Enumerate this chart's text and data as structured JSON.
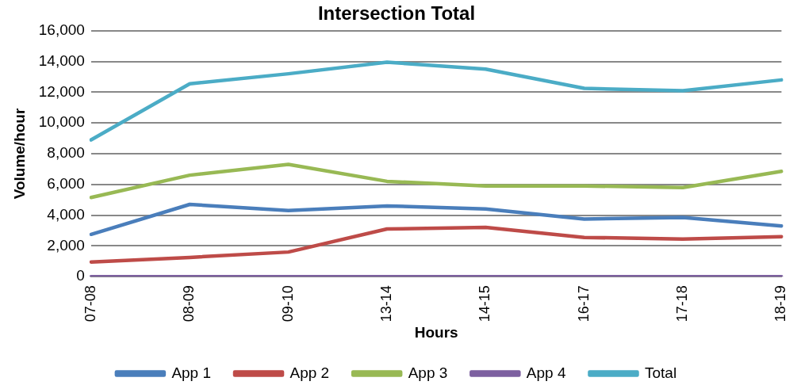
{
  "chart_data": {
    "type": "line",
    "title": "Intersection Total",
    "xlabel": "Hours",
    "ylabel": "Volume/hour",
    "categories": [
      "07-08",
      "08-09",
      "09-10",
      "13-14",
      "14-15",
      "16-17",
      "17-18",
      "18-19"
    ],
    "series": [
      {
        "name": "App 1",
        "color": "#4a7ebb",
        "values": [
          2750,
          4700,
          4300,
          4600,
          4400,
          3750,
          3850,
          3300
        ]
      },
      {
        "name": "App 2",
        "color": "#be4b48",
        "values": [
          950,
          1250,
          1600,
          3100,
          3200,
          2550,
          2450,
          2600
        ]
      },
      {
        "name": "App 3",
        "color": "#98b954",
        "values": [
          5150,
          6600,
          7300,
          6200,
          5900,
          5900,
          5800,
          6850
        ]
      },
      {
        "name": "App 4",
        "color": "#7d60a0",
        "values": [
          0,
          0,
          0,
          0,
          0,
          0,
          0,
          0
        ]
      },
      {
        "name": "Total",
        "color": "#4bacc6",
        "values": [
          8900,
          12550,
          13200,
          13950,
          13500,
          12250,
          12100,
          12800
        ]
      }
    ],
    "ylim": [
      0,
      16000
    ],
    "yticks": [
      {
        "value": 0,
        "label": "0"
      },
      {
        "value": 2000,
        "label": "2,000"
      },
      {
        "value": 4000,
        "label": "4,000"
      },
      {
        "value": 6000,
        "label": "6,000"
      },
      {
        "value": 8000,
        "label": "8,000"
      },
      {
        "value": 10000,
        "label": "10,000"
      },
      {
        "value": 12000,
        "label": "12,000"
      },
      {
        "value": 14000,
        "label": "14,000"
      },
      {
        "value": 16000,
        "label": "16,000"
      }
    ],
    "grid": "y",
    "legend": "bottom",
    "marker": "none",
    "line_style": "solid"
  }
}
